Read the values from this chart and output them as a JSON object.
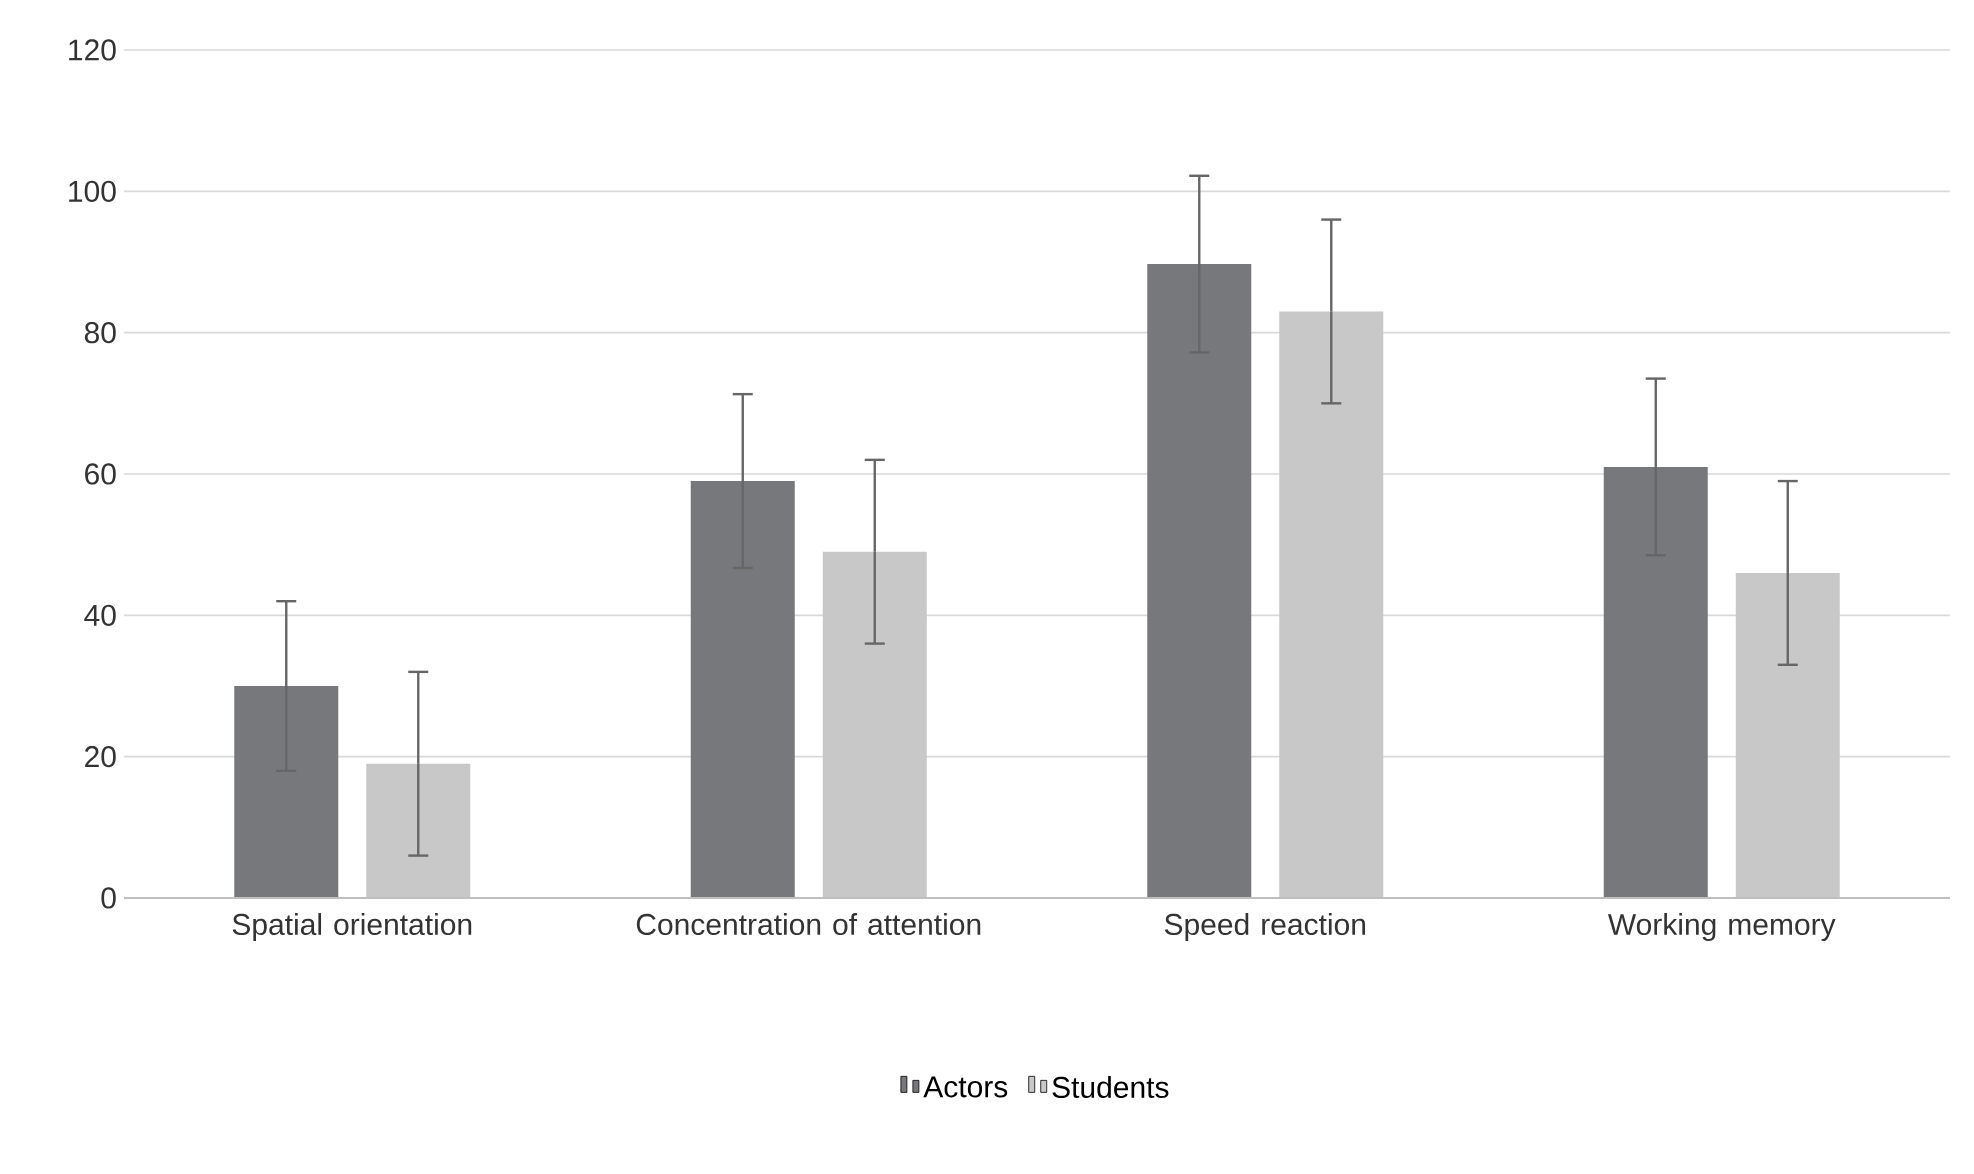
{
  "chart_data": {
    "type": "bar",
    "categories": [
      "Spatial orientation",
      "Concentration of attention",
      "Speed reaction",
      "Working memory"
    ],
    "series": [
      {
        "name": "Actors",
        "color": "#77787b",
        "values": [
          30,
          59,
          89.7,
          61
        ],
        "errors": [
          12,
          12.3,
          12.5,
          12.5
        ]
      },
      {
        "name": "Students",
        "color": "#c8c8c8",
        "values": [
          19,
          49,
          83,
          46
        ],
        "errors": [
          13,
          13,
          13,
          13
        ]
      }
    ],
    "ylim": [
      0,
      120
    ],
    "yticks": [
      0,
      20,
      40,
      60,
      80,
      100,
      120
    ],
    "grid": "y",
    "legend": "bottom"
  }
}
